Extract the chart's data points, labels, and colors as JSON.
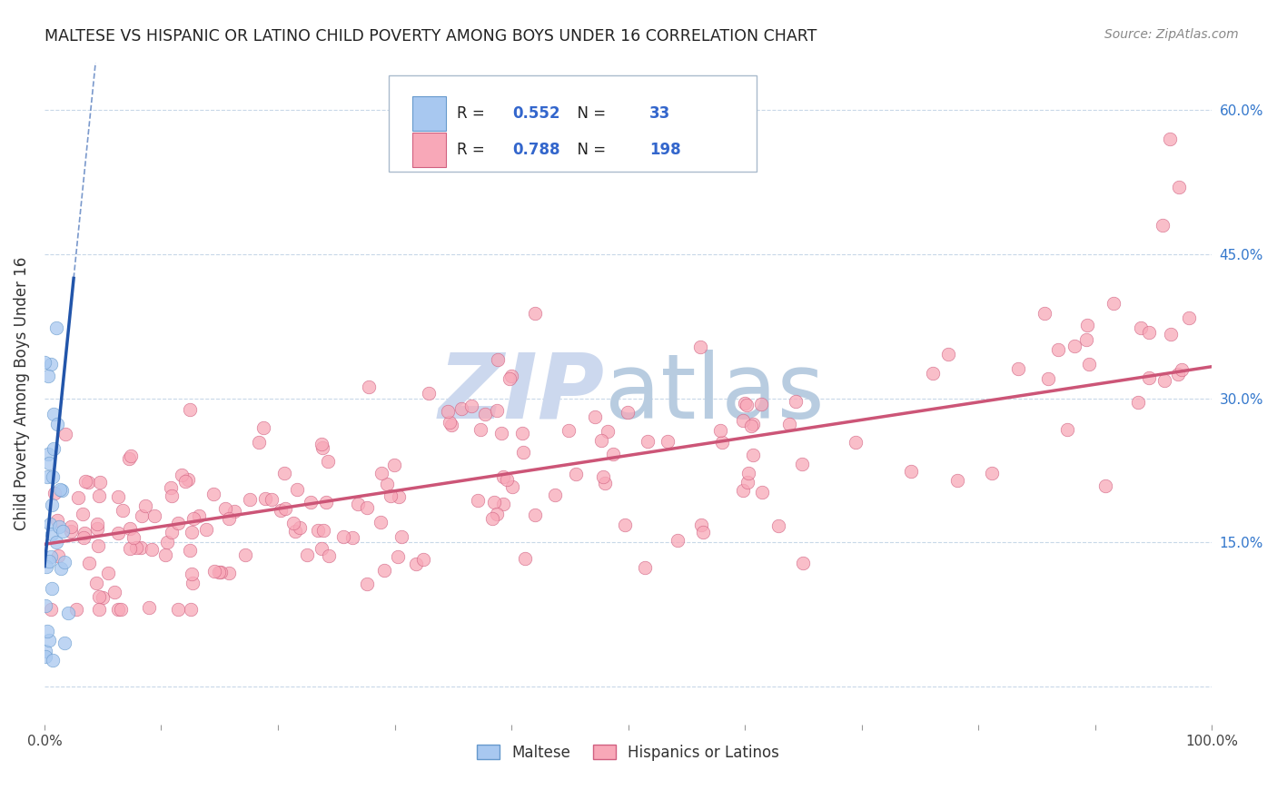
{
  "title": "MALTESE VS HISPANIC OR LATINO CHILD POVERTY AMONG BOYS UNDER 16 CORRELATION CHART",
  "source": "Source: ZipAtlas.com",
  "ylabel": "Child Poverty Among Boys Under 16",
  "xlim": [
    0.0,
    1.0
  ],
  "ylim": [
    -0.04,
    0.65
  ],
  "x_ticks": [
    0.0,
    0.1,
    0.2,
    0.3,
    0.4,
    0.5,
    0.6,
    0.7,
    0.8,
    0.9,
    1.0
  ],
  "x_tick_labels": [
    "0.0%",
    "",
    "",
    "",
    "",
    "",
    "",
    "",
    "",
    "",
    "100.0%"
  ],
  "y_ticks": [
    0.0,
    0.15,
    0.3,
    0.45,
    0.6
  ],
  "y_tick_labels_right": [
    "",
    "15.0%",
    "30.0%",
    "45.0%",
    "60.0%"
  ],
  "maltese_color": "#a8c8f0",
  "maltese_edge_color": "#6699cc",
  "hispanic_color": "#f8a8b8",
  "hispanic_edge_color": "#d06080",
  "blue_line_color": "#2255aa",
  "pink_line_color": "#cc5577",
  "legend_entries": [
    {
      "label": "Maltese",
      "R": "0.552",
      "N": "33",
      "color": "#a8c8f0",
      "edge": "#6699cc"
    },
    {
      "label": "Hispanics or Latinos",
      "R": "0.788",
      "N": "198",
      "color": "#f8a8b8",
      "edge": "#d06080"
    }
  ],
  "maltese_slope": 8.0,
  "maltese_intercept": 0.13,
  "hispanic_slope": 0.195,
  "hispanic_intercept": 0.145,
  "watermark_zip_color": "#d0dff0",
  "watermark_atlas_color": "#b8cce4"
}
